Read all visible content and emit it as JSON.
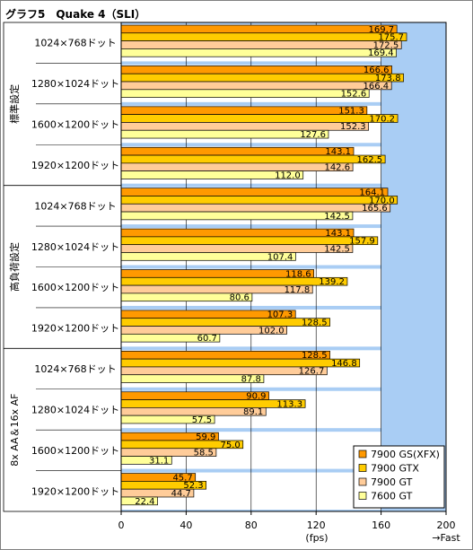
{
  "chart_data": {
    "type": "bar",
    "orientation": "horizontal",
    "title": "グラフ5　Quake 4（SLI）",
    "xlabel": "(fps)",
    "direction_note": "→Fast",
    "xlim": [
      0,
      200
    ],
    "xticks": [
      0,
      40,
      80,
      120,
      160,
      200
    ],
    "grid": true,
    "legend_position": "bottom-right",
    "groups": [
      {
        "label": "標準設定",
        "resolutions": [
          "1024×768ドット",
          "1280×1024ドット",
          "1600×1200ドット",
          "1920×1200ドット"
        ]
      },
      {
        "label": "高負荷設定",
        "resolutions": [
          "1024×768ドット",
          "1280×1024ドット",
          "1600×1200ドット",
          "1920×1200ドット"
        ]
      },
      {
        "label": "8x AA＆16x AF",
        "resolutions": [
          "1024×768ドット",
          "1280×1024ドット",
          "1600×1200ドット",
          "1920×1200ドット"
        ]
      }
    ],
    "series": [
      {
        "name": "7900 GS(XFX)",
        "color": "#ff9900",
        "values": [
          169.7,
          166.6,
          151.3,
          143.1,
          164.1,
          143.1,
          118.6,
          107.3,
          128.5,
          90.9,
          59.9,
          45.7
        ]
      },
      {
        "name": "7900 GTX",
        "color": "#ffcc00",
        "values": [
          175.7,
          173.8,
          170.2,
          162.5,
          170.0,
          157.9,
          139.2,
          128.5,
          146.8,
          113.3,
          75.0,
          52.3
        ]
      },
      {
        "name": "7900 GT",
        "color": "#ffcc99",
        "values": [
          172.5,
          166.4,
          152.3,
          142.6,
          165.6,
          142.5,
          117.8,
          102.0,
          126.7,
          89.1,
          58.5,
          44.7
        ]
      },
      {
        "name": "7600 GT",
        "color": "#ffff99",
        "values": [
          169.4,
          152.6,
          127.6,
          112.0,
          142.5,
          107.4,
          80.6,
          60.7,
          87.8,
          57.5,
          31.1,
          22.4
        ]
      }
    ],
    "colors": {
      "plot_background": "#a9cdf4",
      "band_background": "#ffffff",
      "border": "#000000"
    }
  }
}
